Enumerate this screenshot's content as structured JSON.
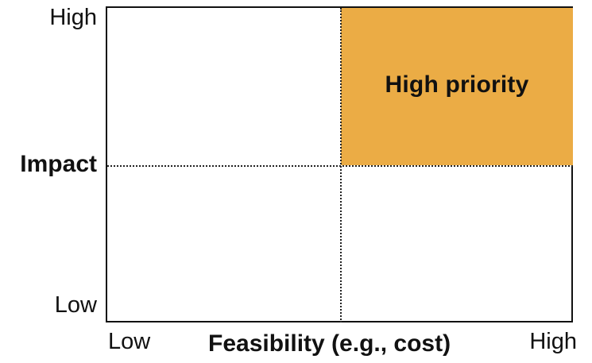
{
  "colors": {
    "highlight": "#EBAC45",
    "border": "#111111"
  },
  "quadrant": {
    "highlight_label": "High priority"
  },
  "y_axis": {
    "title": "Impact",
    "high": "High",
    "low": "Low"
  },
  "x_axis": {
    "title": "Feasibility (e.g., cost)",
    "low": "Low",
    "high": "High"
  }
}
